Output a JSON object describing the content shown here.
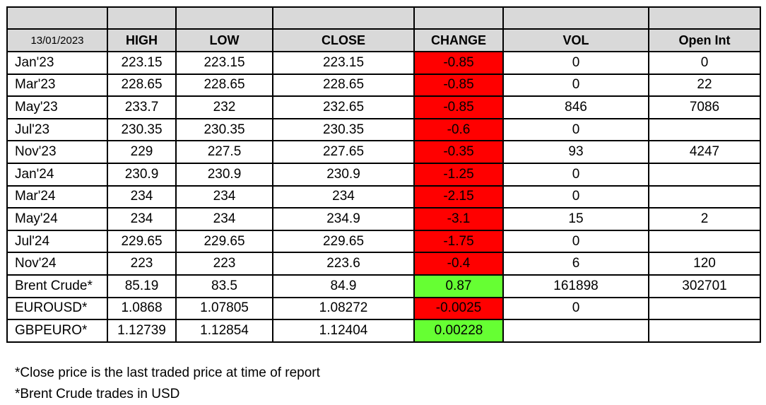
{
  "report_date": "13/01/2023",
  "columns": [
    "HIGH",
    "LOW",
    "CLOSE",
    "CHANGE",
    "VOL",
    "Open Int"
  ],
  "colors": {
    "negative": "#ff0000",
    "positive": "#66ff33",
    "header": "#d9d9d9"
  },
  "rows": [
    {
      "name": "Jan'23",
      "high": "223.15",
      "low": "223.15",
      "close": "223.15",
      "change": "-0.85",
      "vol": "0",
      "oi": "0"
    },
    {
      "name": "Mar'23",
      "high": "228.65",
      "low": "228.65",
      "close": "228.65",
      "change": "-0.85",
      "vol": "0",
      "oi": "22"
    },
    {
      "name": "May'23",
      "high": "233.7",
      "low": "232",
      "close": "232.65",
      "change": "-0.85",
      "vol": "846",
      "oi": "7086"
    },
    {
      "name": "Jul'23",
      "high": "230.35",
      "low": "230.35",
      "close": "230.35",
      "change": "-0.6",
      "vol": "0",
      "oi": ""
    },
    {
      "name": "Nov'23",
      "high": "229",
      "low": "227.5",
      "close": "227.65",
      "change": "-0.35",
      "vol": "93",
      "oi": "4247"
    },
    {
      "name": "Jan'24",
      "high": "230.9",
      "low": "230.9",
      "close": "230.9",
      "change": "-1.25",
      "vol": "0",
      "oi": ""
    },
    {
      "name": "Mar'24",
      "high": "234",
      "low": "234",
      "close": "234",
      "change": "-2.15",
      "vol": "0",
      "oi": ""
    },
    {
      "name": "May'24",
      "high": "234",
      "low": "234",
      "close": "234.9",
      "change": "-3.1",
      "vol": "15",
      "oi": "2"
    },
    {
      "name": "Jul'24",
      "high": "229.65",
      "low": "229.65",
      "close": "229.65",
      "change": "-1.75",
      "vol": "0",
      "oi": ""
    },
    {
      "name": "Nov'24",
      "high": "223",
      "low": "223",
      "close": "223.6",
      "change": "-0.4",
      "vol": "6",
      "oi": "120"
    },
    {
      "name": "Brent Crude*",
      "high": "85.19",
      "low": "83.5",
      "close": "84.9",
      "change": "0.87",
      "vol": "161898",
      "oi": "302701"
    },
    {
      "name": "EUROUSD*",
      "high": "1.0868",
      "low": "1.07805",
      "close": "1.08272",
      "change": "-0.0025",
      "vol": "0",
      "oi": ""
    },
    {
      "name": "GBPEURO*",
      "high": "1.12739",
      "low": "1.12854",
      "close": "1.12404",
      "change": "0.00228",
      "vol": "",
      "oi": ""
    }
  ],
  "footnotes": [
    "*Close price is the last traded price at time of report",
    "*Brent Crude trades in USD"
  ]
}
